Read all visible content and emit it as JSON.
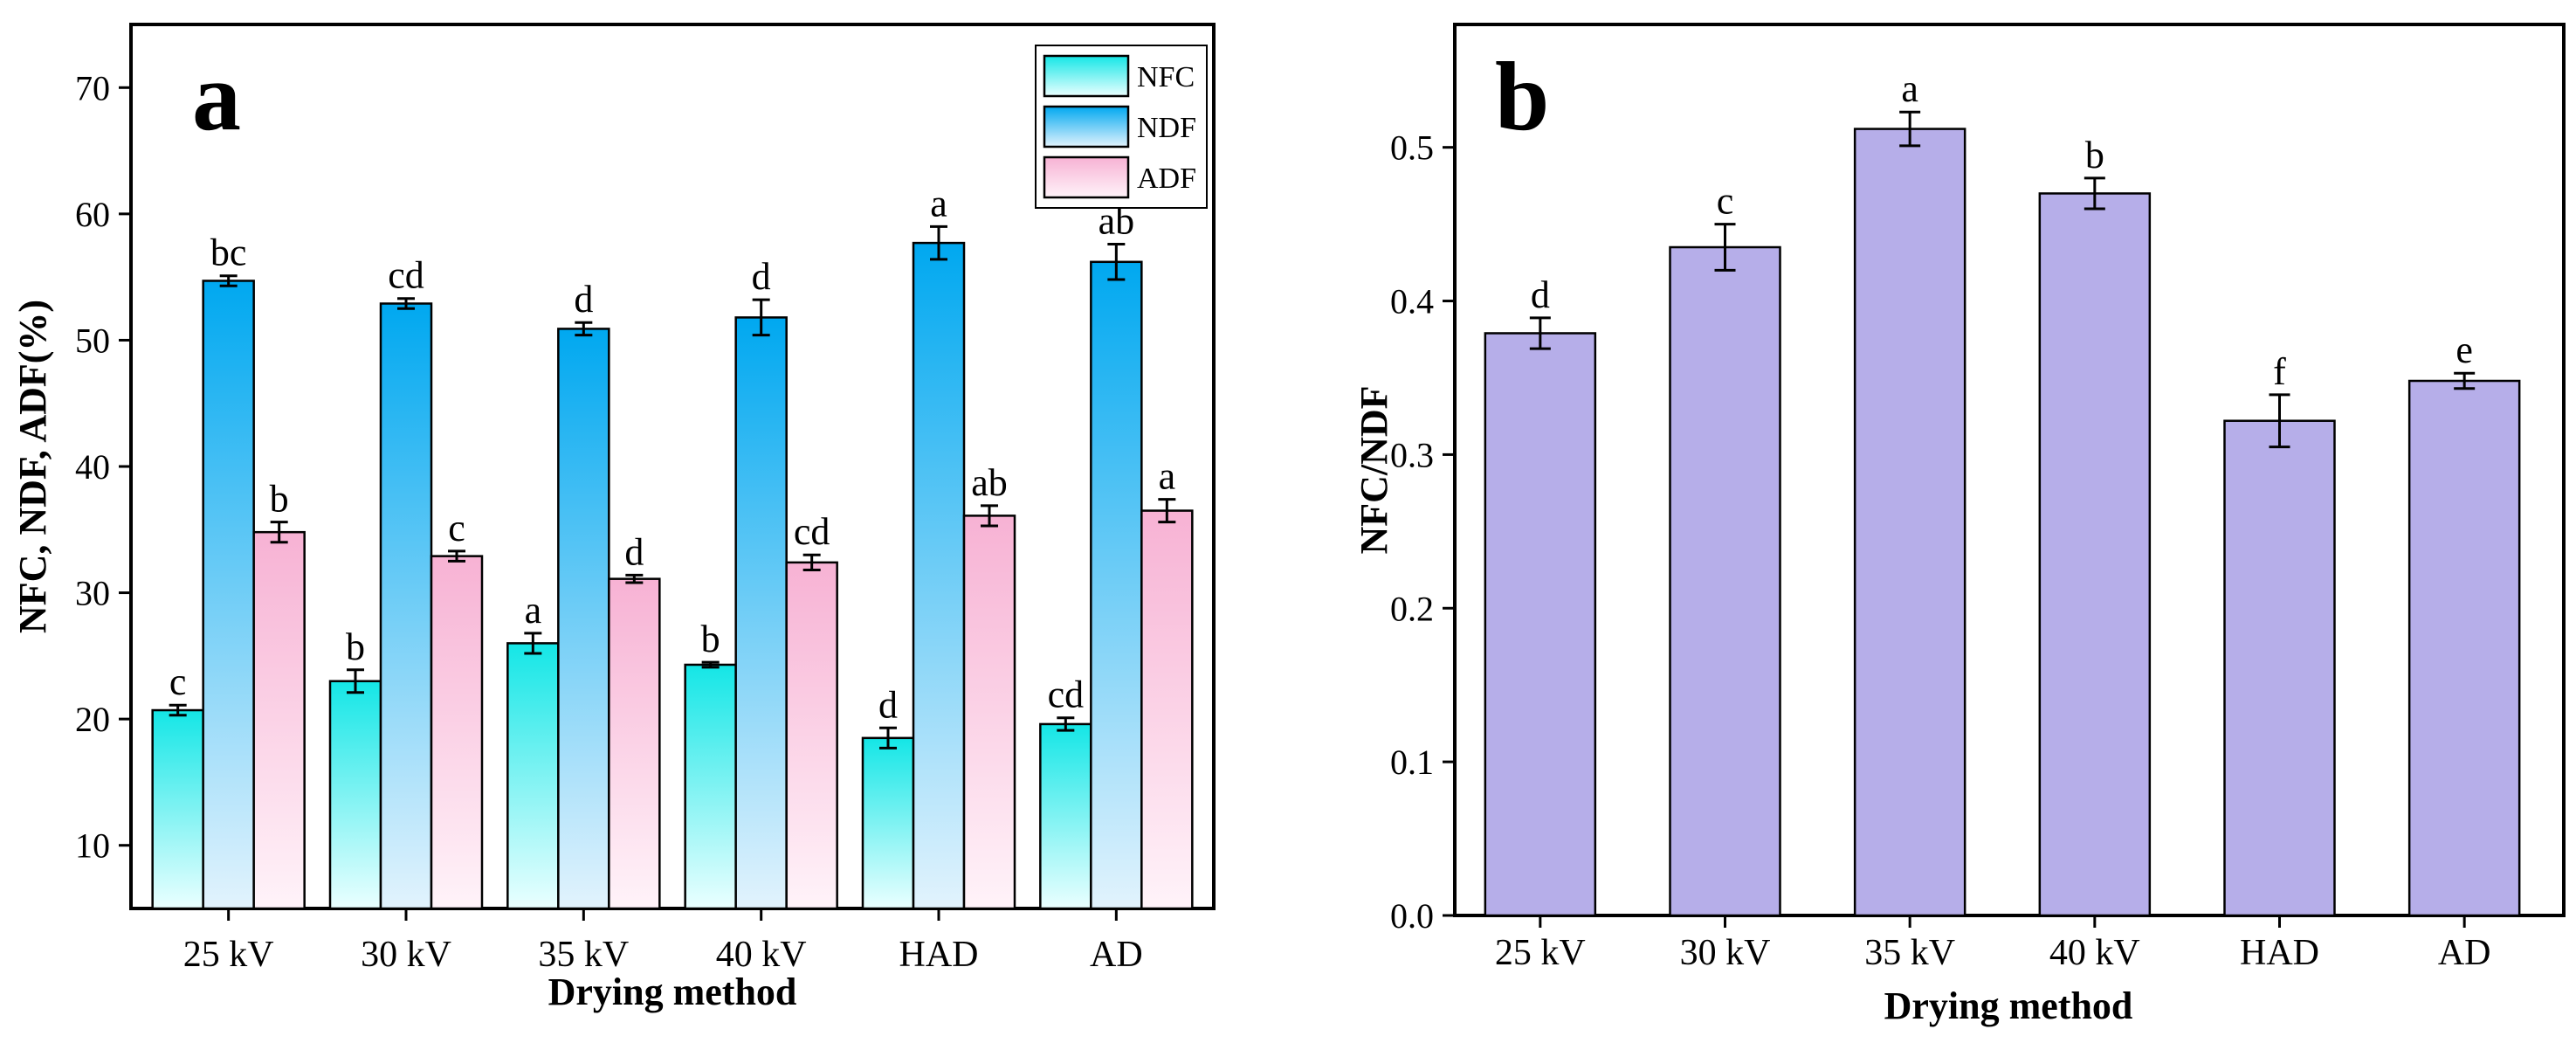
{
  "chart_data": [
    {
      "panel": "a",
      "type": "bar",
      "title": "",
      "xlabel": "Drying method",
      "ylabel": "NFC, NDF, ADF(%)",
      "categories": [
        "25 kV",
        "30 kV",
        "35 kV",
        "40 kV",
        "HAD",
        "AD"
      ],
      "ylim": [
        5,
        75
      ],
      "yticks": [
        10,
        20,
        30,
        40,
        50,
        60,
        70
      ],
      "legend_position": "top-right",
      "series": [
        {
          "name": "NFC",
          "color_top": "#14e6e6",
          "color_bottom": "#eaffff",
          "values": [
            20.7,
            23.0,
            26.0,
            24.3,
            18.5,
            19.6
          ],
          "errors": [
            0.4,
            0.9,
            0.8,
            0.2,
            0.8,
            0.5
          ],
          "letters": [
            "c",
            "b",
            "a",
            "b",
            "d",
            "cd"
          ]
        },
        {
          "name": "NDF",
          "color_top": "#00a8f0",
          "color_bottom": "#e2f3fd",
          "values": [
            54.7,
            52.9,
            50.9,
            51.8,
            57.7,
            56.2
          ],
          "errors": [
            0.4,
            0.4,
            0.5,
            1.4,
            1.3,
            1.4
          ],
          "letters": [
            "bc",
            "cd",
            "d",
            "d",
            "a",
            "ab"
          ]
        },
        {
          "name": "ADF",
          "color_top": "#f7b2d4",
          "color_bottom": "#fff3f9",
          "values": [
            34.8,
            32.9,
            31.1,
            32.4,
            36.1,
            36.5
          ],
          "errors": [
            0.8,
            0.4,
            0.3,
            0.6,
            0.8,
            0.9
          ],
          "letters": [
            "b",
            "c",
            "d",
            "cd",
            "ab",
            "a"
          ]
        }
      ]
    },
    {
      "panel": "b",
      "type": "bar",
      "title": "",
      "xlabel": "Drying method",
      "ylabel": "NFC/NDF",
      "categories": [
        "25 kV",
        "30 kV",
        "35 kV",
        "40 kV",
        "HAD",
        "AD"
      ],
      "ylim": [
        0,
        0.58
      ],
      "yticks": [
        "0.0",
        "0.1",
        "0.2",
        "0.3",
        "0.4",
        "0.5"
      ],
      "color": "#b6aee9",
      "values": [
        0.379,
        0.435,
        0.512,
        0.47,
        0.322,
        0.348
      ],
      "errors": [
        0.01,
        0.015,
        0.011,
        0.01,
        0.017,
        0.005
      ],
      "letters": [
        "d",
        "c",
        "a",
        "b",
        "f",
        "e"
      ]
    }
  ]
}
